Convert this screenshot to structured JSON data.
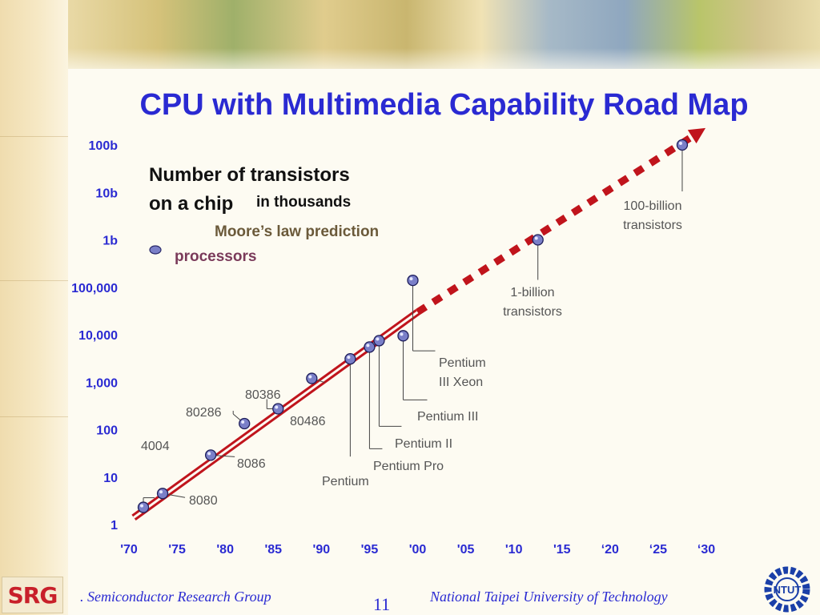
{
  "slide": {
    "title": "CPU with Multimedia Capability Road Map",
    "page_number": "11",
    "footer_left": ". Semiconductor Research Group",
    "footer_right": "National Taipei University of  Technology",
    "logo_left_text": "SRG",
    "logo_right_text": "NTUT"
  },
  "colors": {
    "title": "#2a2ad2",
    "axis_labels": "#2a2ad2",
    "trend_line": "#c0141c",
    "processor_marker": "#7a7fc8",
    "annotation_text": "#555555",
    "prediction_label": "#6b5a3a"
  },
  "legend": {
    "heading_line1": "Number of transistors",
    "heading_line2": "on a chip",
    "unit": "in thousands",
    "prediction": "Moore’s law prediction",
    "processors": "processors"
  },
  "chart_data": {
    "type": "scatter",
    "title": "CPU with Multimedia Capability Road Map",
    "ylabel": "Number of transistors on a chip in thousands",
    "yscale": "log",
    "y_tick_labels": [
      "1",
      "10",
      "100",
      "1,000",
      "10,000",
      "100,000",
      "1b",
      "10b",
      "100b"
    ],
    "y_tick_values": [
      1,
      10,
      100,
      1000,
      10000,
      100000,
      1000000,
      10000000,
      100000000
    ],
    "x_tick_labels": [
      "'70",
      "'75",
      "'80",
      "'85",
      "'90",
      "'95",
      "'00",
      "'05",
      "'10",
      "'15",
      "‘20",
      "‘25",
      "‘30"
    ],
    "x_tick_values": [
      1970,
      1975,
      1980,
      1985,
      1990,
      1995,
      2000,
      2005,
      2010,
      2015,
      2020,
      2025,
      2030
    ],
    "xlim": [
      1970,
      2030
    ],
    "ylim": [
      1,
      100000000
    ],
    "grid": false,
    "series": [
      {
        "name": "processors",
        "points": [
          {
            "label": "4004",
            "x": 1971.5,
            "y": 2.3
          },
          {
            "label": "8080",
            "x": 1973.5,
            "y": 4.5
          },
          {
            "label": "8086",
            "x": 1978.5,
            "y": 29
          },
          {
            "label": "80286",
            "x": 1982,
            "y": 134
          },
          {
            "label": "80386",
            "x": 1985.5,
            "y": 275
          },
          {
            "label": "80486",
            "x": 1989,
            "y": 1200
          },
          {
            "label": "Pentium",
            "x": 1993,
            "y": 3100
          },
          {
            "label": "Pentium Pro",
            "x": 1995,
            "y": 5500
          },
          {
            "label": "Pentium II",
            "x": 1996,
            "y": 7500
          },
          {
            "label": "Pentium III",
            "x": 1998.5,
            "y": 9500
          },
          {
            "label": "Pentium III Xeon",
            "x": 1999.5,
            "y": 140000
          }
        ]
      },
      {
        "name": "Moore’s law prediction",
        "points": [
          {
            "label": "1-billion transistors",
            "x": 2012.5,
            "y": 1000000
          },
          {
            "label": "100-billion transistors",
            "x": 2027.5,
            "y": 100000000
          }
        ]
      }
    ],
    "trend_solid": {
      "x": [
        1970.5,
        2000
      ],
      "y": [
        1.4,
        30000
      ]
    },
    "trend_dashed": {
      "x": [
        2000,
        2029.5
      ],
      "y": [
        30000,
        200000000
      ]
    }
  }
}
